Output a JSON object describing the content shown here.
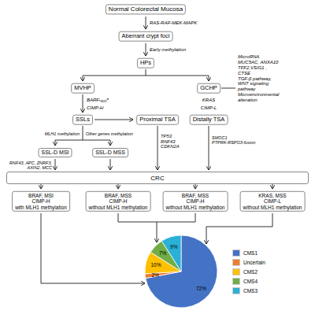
{
  "chart_data": {
    "type": "pie",
    "categories": [
      "CMS1",
      "Uncertain",
      "CMS2",
      "CMS4",
      "CMS3"
    ],
    "values": [
      72,
      2,
      10,
      7,
      9
    ],
    "value_labels": [
      "72%",
      "2%",
      "10%",
      "7%",
      "9%"
    ],
    "colors": [
      "#4472c4",
      "#ed7d31",
      "#ffc000",
      "#70ad47",
      "#2bb0d7"
    ],
    "data_labels": true,
    "legend": "right",
    "annotations": [
      "Normal Colorectal Mucosa",
      "Aberrant crypt foci",
      "HPs",
      "MVHP",
      "GCHP",
      "SSLs",
      "Proximal TSA",
      "Distally TSA",
      "SSL-D MSI",
      "SSL-D MSS",
      "CRC",
      "BRAF, MSI\nCIMP-H\nwith MLH1 methylation",
      "BRAF, MSS\nCIMP-H\nwithout MLH1 methylation",
      "BRAF, MSS\nCIMP-H\nwithout MLH1 methylation",
      "KRAS, MSS\nCIMP-L\nwithout MLH1 methylation",
      "RAS-RAF-MEK-MAPK",
      "Early methylation",
      "BARFᵥ₆₀₀ᵊ",
      "CIMP-H",
      "KRAS",
      "CIMP-L",
      "MLH1 methylation",
      "Other genes methylation",
      "RNF43, APC, ZNRF3,\nAXIN2, MCC",
      "TP53\nRNF43\nCDKN2A",
      "SMOC1\nPTPRK-RSPO3-fusion",
      "MicroRNA\nMUC5AC, ANXA10\nTFF2,VSIG1 ,\nCTSE\nTGF-β pathway,\nWNT signaling\npathway\nMicroenvironmental\nalteration"
    ]
  }
}
